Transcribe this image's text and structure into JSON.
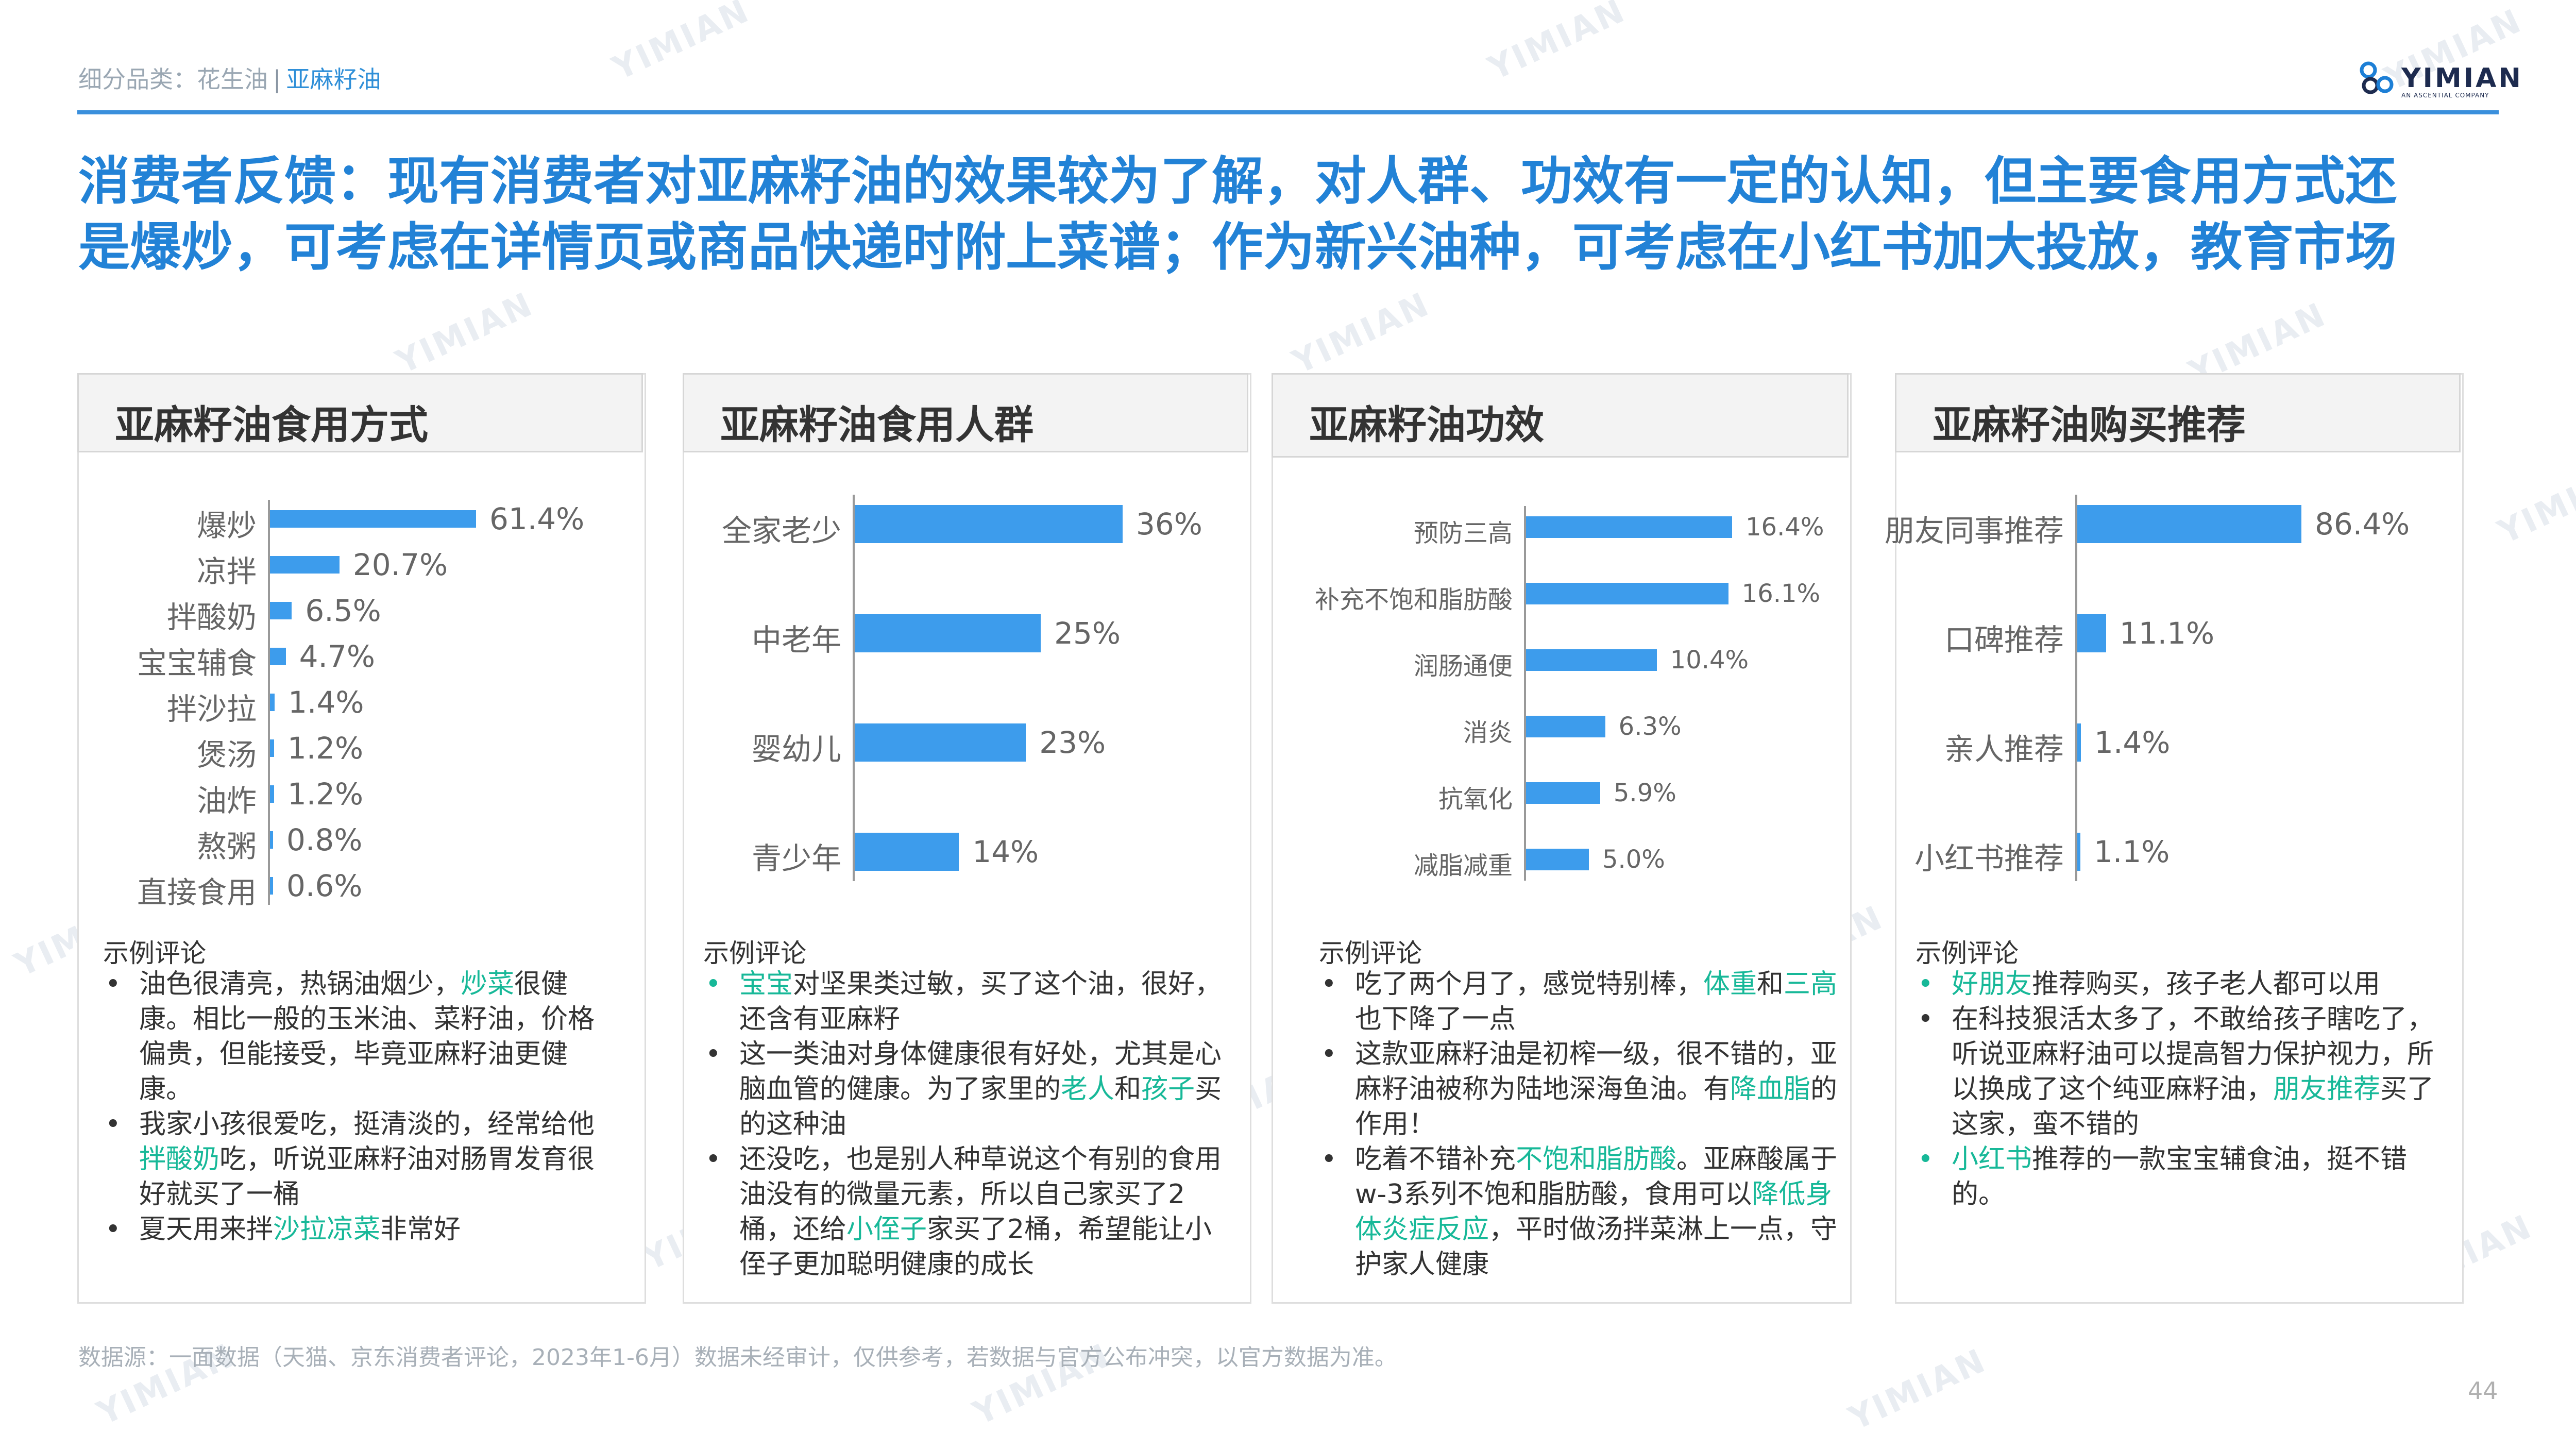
{
  "header": {
    "breadcrumb_prefix": "细分品类：花生油",
    "breadcrumb_sep": "|",
    "breadcrumb_current": "亚麻籽油",
    "logo_text": "YIMIAN",
    "logo_sub": "AN ASCENTIAL COMPANY"
  },
  "headline": {
    "line1": "消费者反馈：现有消费者对亚麻籽油的效果较为了解，对人群、功效有一定的认知，但主要食用方式还",
    "line2": "是爆炒，可考虑在详情页或商品快递时附上菜谱；作为新兴油种，可考虑在小红书加大投放，教育市场"
  },
  "panels": [
    {
      "title": "亚麻籽油食用方式"
    },
    {
      "title": "亚麻籽油食用人群"
    },
    {
      "title": "亚麻籽油功效"
    },
    {
      "title": "亚麻籽油购买推荐"
    }
  ],
  "comments_title": "示例评论",
  "chart_data": [
    {
      "type": "bar",
      "orientation": "horizontal",
      "title": "亚麻籽油食用方式",
      "categories": [
        "爆炒",
        "凉拌",
        "拌酸奶",
        "宝宝辅食",
        "拌沙拉",
        "煲汤",
        "油炸",
        "熬粥",
        "直接食用"
      ],
      "values": [
        61.4,
        20.7,
        6.5,
        4.7,
        1.4,
        1.2,
        1.2,
        0.8,
        0.6
      ],
      "labels": [
        "61.4%",
        "20.7%",
        "6.5%",
        "4.7%",
        "1.4%",
        "1.2%",
        "1.2%",
        "0.8%",
        "0.6%"
      ],
      "color": "#3d9cec"
    },
    {
      "type": "bar",
      "orientation": "horizontal",
      "title": "亚麻籽油食用人群",
      "categories": [
        "全家老少",
        "中老年",
        "婴幼儿",
        "青少年"
      ],
      "values": [
        36,
        25,
        23,
        14
      ],
      "labels": [
        "36%",
        "25%",
        "23%",
        "14%"
      ],
      "color": "#3d9cec"
    },
    {
      "type": "bar",
      "orientation": "horizontal",
      "title": "亚麻籽油功效",
      "categories": [
        "预防三高",
        "补充不饱和脂肪酸",
        "润肠通便",
        "消炎",
        "抗氧化",
        "减脂减重"
      ],
      "values": [
        16.4,
        16.1,
        10.4,
        6.3,
        5.9,
        5.0
      ],
      "labels": [
        "16.4%",
        "16.1%",
        "10.4%",
        "6.3%",
        "5.9%",
        "5.0%"
      ],
      "color": "#3d9cec"
    },
    {
      "type": "bar",
      "orientation": "horizontal",
      "title": "亚麻籽油购买推荐",
      "categories": [
        "朋友同事推荐",
        "口碑推荐",
        "亲人推荐",
        "小红书推荐"
      ],
      "values": [
        86.4,
        11.1,
        1.4,
        1.1
      ],
      "labels": [
        "86.4%",
        "11.1%",
        "1.4%",
        "1.1%"
      ],
      "color": "#3d9cec"
    }
  ],
  "comments": {
    "p1": [
      {
        "a": "油色很清亮，热锅油烟少，",
        "h": "炒菜",
        "b": "很健康。相比一般的玉米油、菜籽油，价格偏贵，但能接受，毕竟亚麻籽油更健康。"
      },
      {
        "a": "我家小孩很爱吃，挺清淡的，经常给他",
        "h": "拌酸奶",
        "b": "吃，听说亚麻籽油对肠胃发育很好就买了一桶"
      },
      {
        "a": "夏天用来拌",
        "h": "沙拉凉菜",
        "b": "非常好"
      }
    ],
    "p2": [
      {
        "a": "",
        "h": "宝宝",
        "b": "对坚果类过敏，买了这个油，很好，还含有亚麻籽"
      },
      {
        "a": "这一类油对身体健康很有好处，尤其是心脑血管的健康。为了家里的",
        "h": "老人",
        "b": "",
        "h2": "和",
        "h3": "孩子",
        "c": "买的这种油"
      },
      {
        "a": "还没吃，也是别人种草说这个有别的食用油没有的微量元素，所以自己家买了2桶，还给",
        "h": "小侄子",
        "b": "家买了2桶，希望能让小侄子更加聪明健康的成长"
      }
    ],
    "p3": [
      {
        "a": "吃了两个月了，感觉特别棒，",
        "h": "体重",
        "b": "和",
        "h2": "三高",
        "c": "也下降了一点"
      },
      {
        "a": "这款亚麻籽油是初榨一级，很不错的，亚麻籽油被称为陆地深海鱼油。有",
        "h": "降血脂",
        "b": "的作用！"
      },
      {
        "a": "吃着不错补充",
        "h": "不饱和脂肪酸",
        "b": "。亚麻酸属于w-3系列不饱和脂肪酸，食用可以",
        "h2": "降低身体炎症反应",
        "c": "，平时做汤拌菜淋上一点，守护家人健康"
      }
    ],
    "p4": [
      {
        "a": "",
        "h": "好朋友",
        "b": "推荐购买，孩子老人都可以用"
      },
      {
        "a": "在科技狠活太多了，不敢给孩子瞎吃了，听说亚麻籽油可以提高智力保护视力，所以换成了这个纯亚麻籽油，",
        "h": "朋友推荐",
        "b": "买了这家，蛮不错的"
      },
      {
        "a": "",
        "h": "小红书",
        "b": "推荐的一款宝宝辅食油，挺不错的。"
      }
    ]
  },
  "footer": {
    "source": "数据源：一面数据（天猫、京东消费者评论，2023年1-6月）数据未经审计，仅供参考，若数据与官方公布冲突，以官方数据为准。",
    "page_number": "44"
  }
}
